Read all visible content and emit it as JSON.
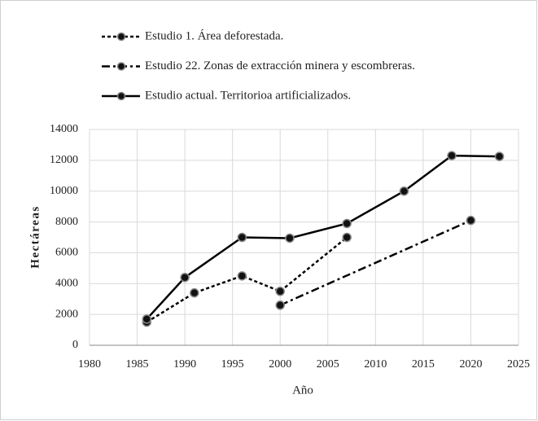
{
  "chart_data": {
    "type": "line",
    "xlabel": "Año",
    "ylabel": "Hectáreas",
    "series": [
      {
        "name": "Estudio 1. Área deforestada.",
        "color": "#000000",
        "line_style": "dotted",
        "x": [
          1986,
          1991,
          1996,
          2000,
          2007
        ],
        "values": [
          1500,
          3400,
          4500,
          3500,
          7000
        ]
      },
      {
        "name": "Estudio 22. Zonas de extracción minera y escombreras.",
        "color": "#000000",
        "line_style": "dashdot",
        "x": [
          2000,
          2020
        ],
        "values": [
          2600,
          8100
        ]
      },
      {
        "name": "Estudio actual. Territorioa artificializados.",
        "color": "#000000",
        "line_style": "solid",
        "x": [
          1986,
          1990,
          1996,
          2001,
          2007,
          2013,
          2018,
          2023
        ],
        "values": [
          1700,
          4400,
          7000,
          6950,
          7900,
          10000,
          12300,
          12250
        ]
      }
    ],
    "xlim": [
      1980,
      2025
    ],
    "xticks": [
      1980,
      1985,
      1990,
      1995,
      2000,
      2005,
      2010,
      2015,
      2020,
      2025
    ],
    "ylim": [
      0,
      14000
    ],
    "yticks": [
      0,
      2000,
      4000,
      6000,
      8000,
      10000,
      12000,
      14000
    ],
    "grid": true,
    "legend": "top"
  }
}
